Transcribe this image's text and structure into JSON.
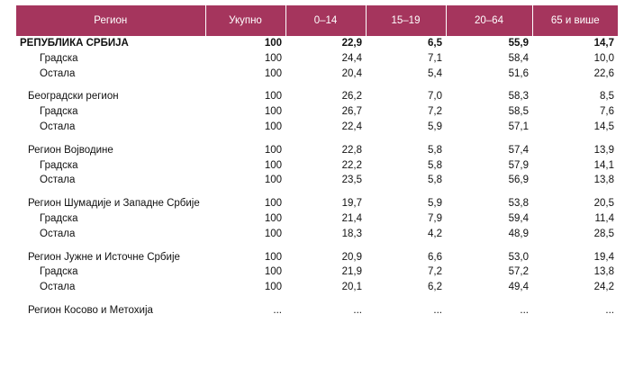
{
  "table": {
    "headers": [
      "Регион",
      "Укупно",
      "0–14",
      "15–19",
      "20–64",
      "65 и више"
    ],
    "groups": [
      {
        "name": "РЕПУБЛИКА СРБИЈА",
        "values": [
          "100",
          "22,9",
          "6,5",
          "55,9",
          "14,7"
        ],
        "rows": [
          {
            "name": "Градска",
            "values": [
              "100",
              "24,4",
              "7,1",
              "58,4",
              "10,0"
            ]
          },
          {
            "name": "Остала",
            "values": [
              "100",
              "20,4",
              "5,4",
              "51,6",
              "22,6"
            ]
          }
        ]
      },
      {
        "name": "Београдски регион",
        "values": [
          "100",
          "26,2",
          "7,0",
          "58,3",
          "8,5"
        ],
        "rows": [
          {
            "name": "Градска",
            "values": [
              "100",
              "26,7",
              "7,2",
              "58,5",
              "7,6"
            ]
          },
          {
            "name": "Остала",
            "values": [
              "100",
              "22,4",
              "5,9",
              "57,1",
              "14,5"
            ]
          }
        ]
      },
      {
        "name": "Регион Војводине",
        "values": [
          "100",
          "22,8",
          "5,8",
          "57,4",
          "13,9"
        ],
        "rows": [
          {
            "name": "Градска",
            "values": [
              "100",
              "22,2",
              "5,8",
              "57,9",
              "14,1"
            ]
          },
          {
            "name": "Остала",
            "values": [
              "100",
              "23,5",
              "5,8",
              "56,9",
              "13,8"
            ]
          }
        ]
      },
      {
        "name": "Регион Шумадије и Западне Србије",
        "values": [
          "100",
          "19,7",
          "5,9",
          "53,8",
          "20,5"
        ],
        "rows": [
          {
            "name": "Градска",
            "values": [
              "100",
              "21,4",
              "7,9",
              "59,4",
              "11,4"
            ]
          },
          {
            "name": "Остала",
            "values": [
              "100",
              "18,3",
              "4,2",
              "48,9",
              "28,5"
            ]
          }
        ]
      },
      {
        "name": "Регион Јужне и Источне Србије",
        "values": [
          "100",
          "20,9",
          "6,6",
          "53,0",
          "19,4"
        ],
        "rows": [
          {
            "name": "Градска",
            "values": [
              "100",
              "21,9",
              "7,2",
              "57,2",
              "13,8"
            ]
          },
          {
            "name": "Остала",
            "values": [
              "100",
              "20,1",
              "6,2",
              "49,4",
              "24,2"
            ]
          }
        ]
      },
      {
        "name": "Регион Косово и Метохија",
        "values": [
          "...",
          "...",
          "...",
          "...",
          "..."
        ],
        "rows": []
      }
    ]
  }
}
